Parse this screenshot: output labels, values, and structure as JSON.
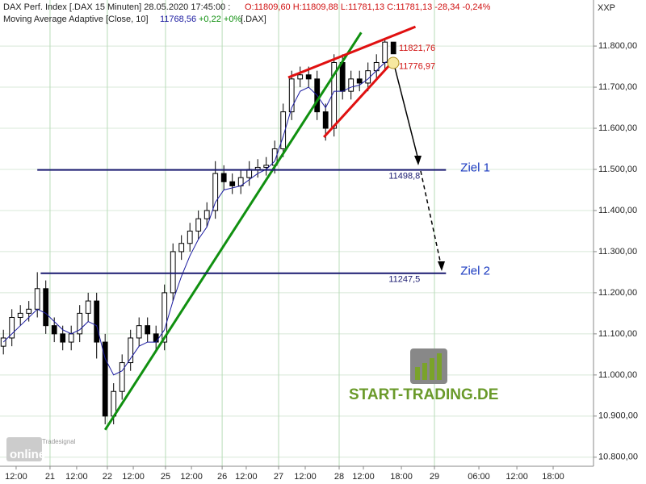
{
  "header": {
    "line1": "DAX Perf. Index [.DAX  15 Minuten] 28.05.2020 17:45:00 :",
    "ohlc": "O:11809,60 H:11809,88 L:11781,13 C:11781,13 -28,34 -0,24%",
    "line2": "Moving Average Adaptive [Close, 10]",
    "ma_value": "11768,56",
    "ma_change": "+0,22 +0%",
    "ma_symbol": "[.DAX]",
    "axis_symbol": "XXP"
  },
  "logo": {
    "brand": "START-TRADING.DE",
    "platform_small": "Tradesignal",
    "platform": "online"
  },
  "chart_data": {
    "type": "candlestick",
    "x": [
      2,
      7,
      12,
      17,
      22,
      27,
      32,
      37,
      42,
      47,
      52,
      57,
      62,
      67,
      72,
      77,
      82,
      87,
      92,
      97,
      102,
      107,
      112,
      117,
      122,
      127,
      132,
      137,
      142,
      147,
      152,
      157,
      162,
      167,
      172,
      177,
      182,
      187,
      192,
      197,
      202,
      207,
      212,
      217,
      222,
      227,
      232
    ],
    "open": [
      11070,
      11090,
      11140,
      11150,
      11160,
      11210,
      11120,
      11100,
      11080,
      11100,
      11150,
      11180,
      11080,
      10900,
      10960,
      11030,
      11090,
      11120,
      11100,
      11080,
      11200,
      11300,
      11320,
      11350,
      11380,
      11400,
      11490,
      11470,
      11460,
      11480,
      11500,
      11505,
      11510,
      11550,
      11640,
      11720,
      11730,
      11720,
      11640,
      11600,
      11760,
      11690,
      11720,
      11710,
      11740,
      11760,
      11809.6
    ],
    "high": [
      11110,
      11160,
      11170,
      11180,
      11250,
      11230,
      11140,
      11120,
      11120,
      11170,
      11200,
      11200,
      11100,
      10980,
      11050,
      11110,
      11140,
      11140,
      11120,
      11220,
      11320,
      11340,
      11370,
      11400,
      11420,
      11520,
      11510,
      11490,
      11500,
      11520,
      11525,
      11530,
      11570,
      11660,
      11740,
      11750,
      11750,
      11740,
      11660,
      11780,
      11780,
      11740,
      11740,
      11760,
      11780,
      11820,
      11809.88
    ],
    "low": [
      11050,
      11070,
      11120,
      11130,
      11140,
      11100,
      11080,
      11060,
      11060,
      11080,
      11130,
      11040,
      10880,
      10880,
      10940,
      11010,
      11070,
      11080,
      11060,
      11060,
      11180,
      11280,
      11300,
      11330,
      11360,
      11380,
      11450,
      11440,
      11440,
      11460,
      11480,
      11485,
      11490,
      11530,
      11620,
      11700,
      11700,
      11620,
      11570,
      11580,
      11670,
      11670,
      11690,
      11690,
      11720,
      11740,
      11781.13
    ],
    "close": [
      11090,
      11140,
      11150,
      11160,
      11210,
      11120,
      11100,
      11080,
      11100,
      11150,
      11180,
      11080,
      10900,
      10960,
      11030,
      11090,
      11120,
      11100,
      11080,
      11200,
      11300,
      11320,
      11350,
      11380,
      11400,
      11490,
      11470,
      11460,
      11480,
      11500,
      11505,
      11510,
      11550,
      11640,
      11720,
      11730,
      11720,
      11640,
      11600,
      11760,
      11690,
      11720,
      11710,
      11740,
      11760,
      11809.6,
      11781.13
    ],
    "up_color": "#ffffff",
    "down_color": "#000000",
    "moving_average": {
      "color": "#1a1aa0",
      "values": [
        11080,
        11100,
        11120,
        11140,
        11160,
        11150,
        11130,
        11110,
        11100,
        11110,
        11130,
        11120,
        11040,
        11000,
        11010,
        11040,
        11070,
        11080,
        11080,
        11110,
        11180,
        11240,
        11290,
        11330,
        11360,
        11420,
        11450,
        11455,
        11460,
        11475,
        11490,
        11500,
        11520,
        11580,
        11650,
        11690,
        11700,
        11680,
        11650,
        11690,
        11690,
        11700,
        11705,
        11720,
        11740,
        11760,
        11768.56
      ]
    },
    "trendlines": [
      {
        "color": "#109010",
        "x": [
          62,
          213
        ],
        "y": [
          10866.7,
          11833
        ]
      },
      {
        "color": "#e01010",
        "x": [
          170,
          245
        ],
        "y": [
          11723.5,
          11847
        ]
      },
      {
        "color": "#e01010",
        "x": [
          191,
          230
        ],
        "y": [
          11578.4,
          11755
        ]
      }
    ],
    "levels": [
      {
        "value": 11498.8,
        "x": [
          22,
          263
        ],
        "label": "11498,8",
        "target": "Ziel 1"
      },
      {
        "value": 11247.5,
        "x": [
          24,
          263
        ],
        "label": "11247,5",
        "target": "Ziel 2"
      }
    ],
    "price_labels": [
      {
        "value": 11821.76,
        "label": "11821,76"
      },
      {
        "value": 11776.97,
        "label": "11776,97"
      }
    ],
    "xlim": [
      0,
      350
    ],
    "ylim": [
      10778,
      11912
    ],
    "yticks": [
      {
        "value": 10800,
        "label": "10.800,00"
      },
      {
        "value": 10900,
        "label": "10.900,00"
      },
      {
        "value": 11000,
        "label": "11.000,00"
      },
      {
        "value": 11100,
        "label": "11.100,00"
      },
      {
        "value": 11200,
        "label": "11.200,00"
      },
      {
        "value": 11300,
        "label": "11.300,00"
      },
      {
        "value": 11400,
        "label": "11.400,00"
      },
      {
        "value": 11500,
        "label": "11.500,00"
      },
      {
        "value": 11600,
        "label": "11.600,00"
      },
      {
        "value": 11700,
        "label": "11.700,00"
      },
      {
        "value": 11800,
        "label": "11.800,00"
      }
    ],
    "xticks": [
      {
        "value": 9.5,
        "label": "12:00"
      },
      {
        "value": 29.5,
        "label": "21"
      },
      {
        "value": 45.2,
        "label": "12:00"
      },
      {
        "value": 63.3,
        "label": "22"
      },
      {
        "value": 78.6,
        "label": "12:00"
      },
      {
        "value": 97.6,
        "label": "25"
      },
      {
        "value": 112.9,
        "label": "12:00"
      },
      {
        "value": 131,
        "label": "26"
      },
      {
        "value": 145.2,
        "label": "12:00"
      },
      {
        "value": 164.3,
        "label": "27"
      },
      {
        "value": 180,
        "label": "12:00"
      },
      {
        "value": 200,
        "label": "28"
      },
      {
        "value": 214.3,
        "label": "12:00"
      },
      {
        "value": 236.7,
        "label": "18:00"
      },
      {
        "value": 256.2,
        "label": "29"
      },
      {
        "value": 282.4,
        "label": "06:00"
      },
      {
        "value": 304.8,
        "label": "12:00"
      },
      {
        "value": 326.2,
        "label": "18:00"
      }
    ],
    "day_ticks": [
      29.5,
      63.3,
      97.6,
      131,
      164.3,
      200,
      256.2
    ],
    "grid": true
  }
}
